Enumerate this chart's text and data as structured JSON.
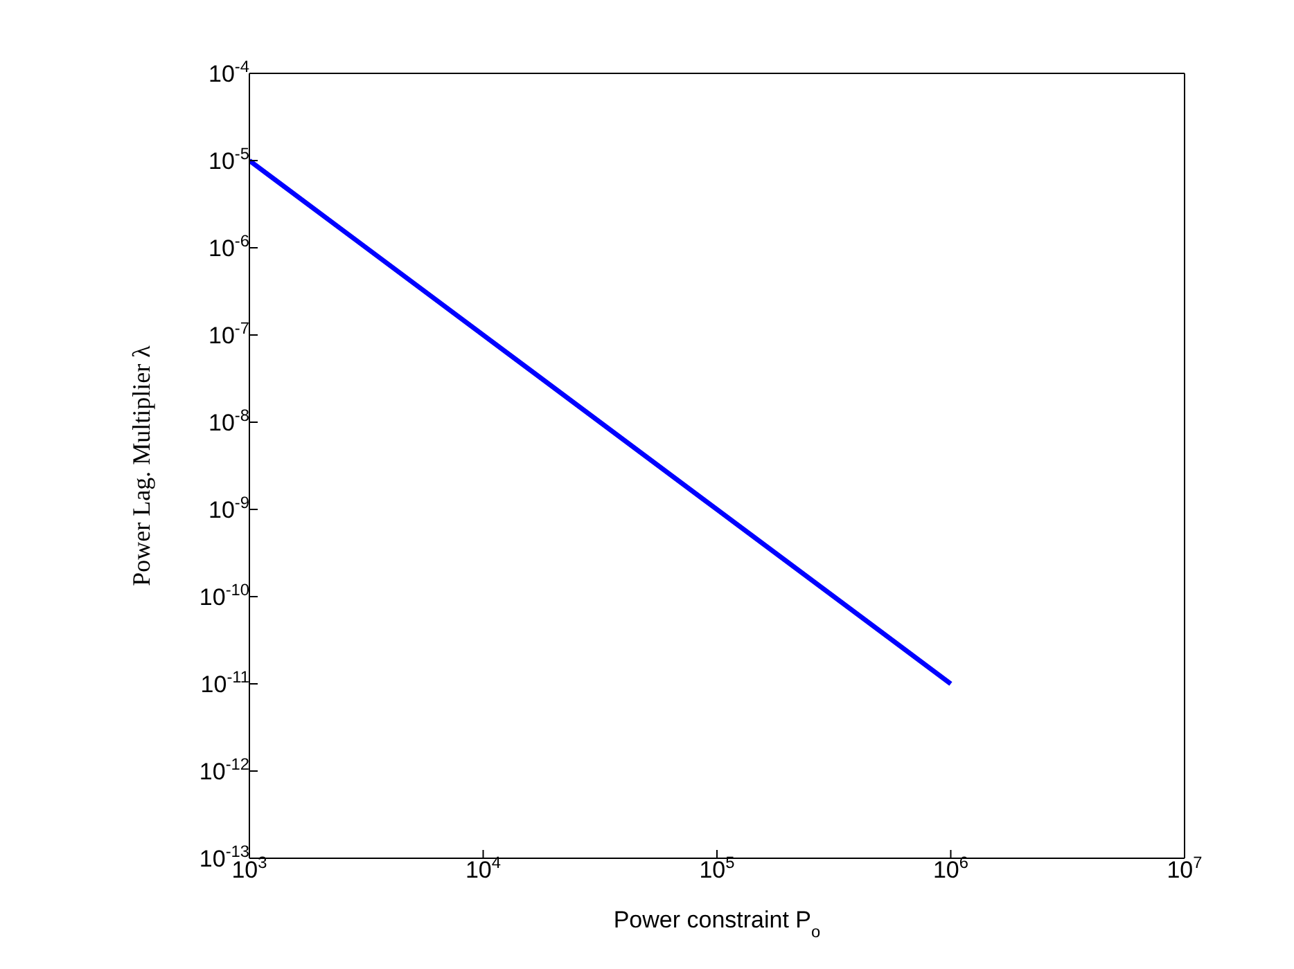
{
  "chart_data": {
    "type": "line",
    "xlabel": "Power constraint P$_{o}$",
    "ylabel": "Power Lag. Multiplier λ",
    "log": "xy",
    "grid": false,
    "legend": false,
    "x": [
      1000,
      10000,
      100000,
      1000000
    ],
    "series": [
      {
        "color": "#0000ff",
        "values": [
          1e-05,
          1e-07,
          1e-09,
          1e-11
        ]
      }
    ],
    "xlim": [
      1000,
      10000000
    ],
    "xticks": [
      {
        "value": 1000,
        "label": "10$^{3}$"
      },
      {
        "value": 10000,
        "label": "10$^{4}$"
      },
      {
        "value": 100000,
        "label": "10$^{5}$"
      },
      {
        "value": 1000000,
        "label": "10$^{6}$"
      },
      {
        "value": 10000000,
        "label": "10$^{7}$"
      }
    ],
    "ylim": [
      1e-13,
      0.0001
    ],
    "yticks": [
      {
        "value": 1e-13,
        "label": "10$^{-13}$"
      },
      {
        "value": 1e-12,
        "label": "10$^{-12}$"
      },
      {
        "value": 1e-11,
        "label": "10$^{-11}$"
      },
      {
        "value": 1e-10,
        "label": "10$^{-10}$"
      },
      {
        "value": 1e-09,
        "label": "10$^{-9}$"
      },
      {
        "value": 1e-08,
        "label": "10$^{-8}$"
      },
      {
        "value": 1e-07,
        "label": "10$^{-7}$"
      },
      {
        "value": 1e-06,
        "label": "10$^{-6}$"
      },
      {
        "value": 1e-05,
        "label": "10$^{-5}$"
      },
      {
        "value": 0.0001,
        "label": "10$^{-4}$"
      }
    ],
    "line_style": "solid"
  }
}
